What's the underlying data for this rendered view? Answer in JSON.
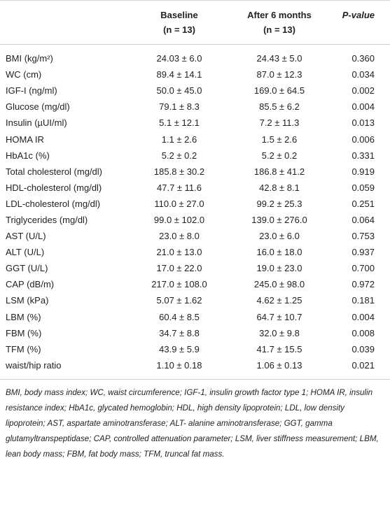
{
  "table": {
    "header": [
      {
        "title": "Baseline",
        "subtitle": "(n = 13)"
      },
      {
        "title": "After 6 months",
        "subtitle": "(n = 13)"
      },
      {
        "title": "P-value"
      }
    ],
    "rows": [
      [
        "BMI (kg/m²)",
        "24.03 ± 6.0",
        "24.43 ± 5.0",
        "0.360"
      ],
      [
        "WC (cm)",
        "89.4 ± 14.1",
        "87.0 ± 12.3",
        "0.034"
      ],
      [
        "IGF-I (ng/ml)",
        "50.0 ± 45.0",
        "169.0 ± 64.5",
        "0.002"
      ],
      [
        "Glucose (mg/dl)",
        "79.1 ± 8.3",
        "85.5 ± 6.2",
        "0.004"
      ],
      [
        "Insulin (µUI/ml)",
        "5.1 ± 12.1",
        "7.2 ± 11.3",
        "0.013"
      ],
      [
        "HOMA IR",
        "1.1 ± 2.6",
        "1.5 ± 2.6",
        "0.006"
      ],
      [
        "HbA1c (%)",
        "5.2 ± 0.2",
        "5.2 ± 0.2",
        "0.331"
      ],
      [
        "Total cholesterol (mg/dl)",
        "185.8 ± 30.2",
        "186.8 ± 41.2",
        "0.919"
      ],
      [
        "HDL-cholesterol (mg/dl)",
        "47.7 ± 11.6",
        "42.8 ± 8.1",
        "0.059"
      ],
      [
        "LDL-cholesterol (mg/dl)",
        "110.0 ± 27.0",
        "99.2 ± 25.3",
        "0.251"
      ],
      [
        "Triglycerides (mg/dl)",
        "99.0 ± 102.0",
        "139.0 ± 276.0",
        "0.064"
      ],
      [
        "AST (U/L)",
        "23.0 ± 8.0",
        "23.0 ± 6.0",
        "0.753"
      ],
      [
        "ALT (U/L)",
        "21.0 ± 13.0",
        "16.0 ± 18.0",
        "0.937"
      ],
      [
        "GGT (U/L)",
        "17.0 ± 22.0",
        "19.0 ± 23.0",
        "0.700"
      ],
      [
        "CAP (dB/m)",
        "217.0 ± 108.0",
        "245.0 ± 98.0",
        "0.972"
      ],
      [
        "LSM (kPa)",
        "5.07 ± 1.62",
        "4.62 ± 1.25",
        "0.181"
      ],
      [
        "LBM (%)",
        "60.4 ± 8.5",
        "64.7 ± 10.7",
        "0.004"
      ],
      [
        "FBM (%)",
        "34.7 ± 8.8",
        "32.0 ± 9.8",
        "0.008"
      ],
      [
        "TFM (%)",
        "43.9 ± 5.9",
        "41.7 ± 15.5",
        "0.039"
      ],
      [
        "waist/hip ratio",
        "1.10 ± 0.18",
        "1.06 ± 0.13",
        "0.021"
      ]
    ],
    "footnote": "BMI, body mass index; WC, waist circumference; IGF-1, insulin growth factor type 1; HOMA IR, insulin resistance index; HbA1c, glycated hemoglobin; HDL, high density lipoprotein; LDL, low density lipoprotein; AST, aspartate aminotransferase; ALT- alanine aminotransferase; GGT, gamma glutamyltranspeptidase; CAP, controlled attenuation parameter; LSM, liver stiffness measurement; LBM, lean body mass; FBM, fat body mass; TFM, truncal fat mass."
  }
}
